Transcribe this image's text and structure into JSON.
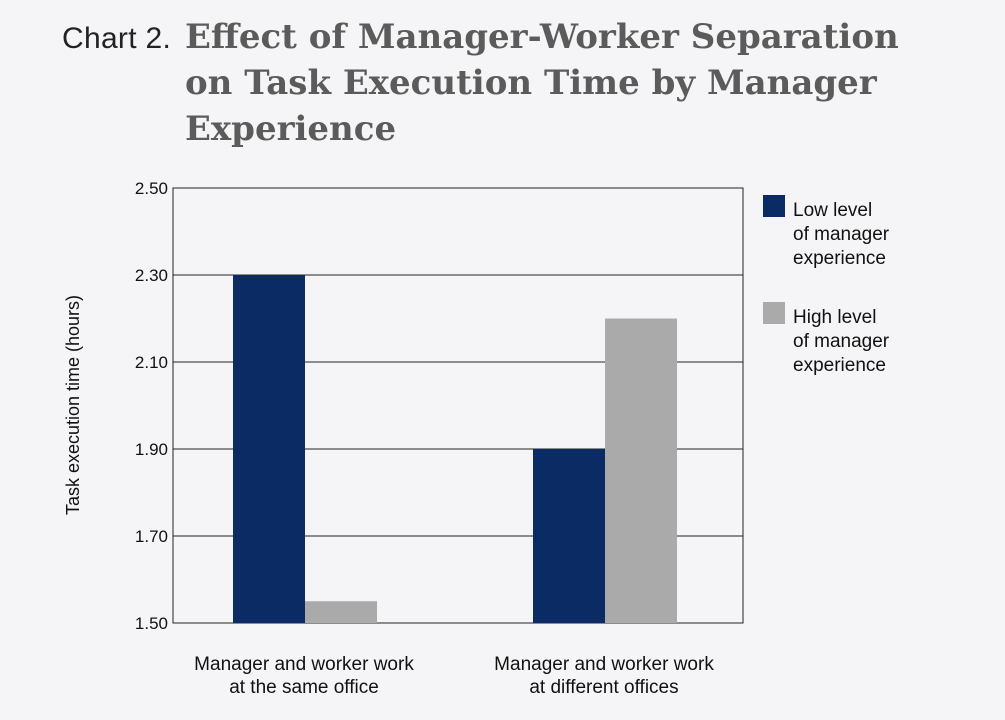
{
  "header": {
    "prefix": "Chart 2.",
    "title": "Effect of Manager-Worker Separation on Task Execution Time by Manager Experience"
  },
  "chart_data": {
    "type": "bar",
    "categories": [
      [
        "Manager and worker work",
        "at the same office"
      ],
      [
        "Manager and worker work",
        "at different offices"
      ]
    ],
    "series": [
      {
        "name": [
          "Low level",
          "of manager",
          "experience"
        ],
        "values": [
          2.3,
          1.9
        ],
        "color": "#0a2b63"
      },
      {
        "name": [
          "High level",
          "of manager",
          "experience"
        ],
        "values": [
          1.55,
          2.2
        ],
        "color": "#aaaaaa"
      }
    ],
    "ylabel": "Task execution time (hours)",
    "xlabel": "",
    "ylim": [
      1.5,
      2.5
    ],
    "yticks": [
      "1.50",
      "1.70",
      "1.90",
      "2.10",
      "2.30",
      "2.50"
    ],
    "grid": true,
    "legend": "right"
  }
}
